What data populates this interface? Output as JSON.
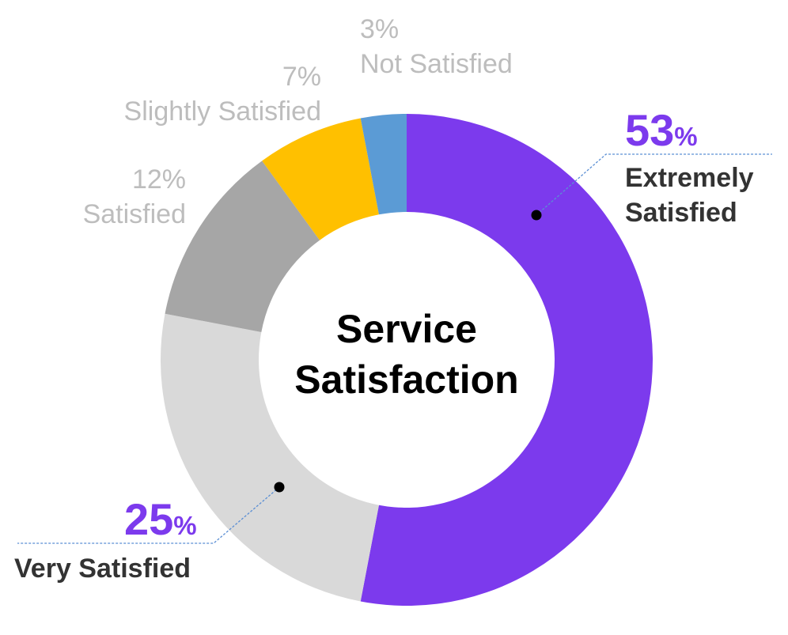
{
  "chart_data": {
    "type": "pie",
    "subtype": "donut",
    "title": "Service Satisfaction",
    "slices": [
      {
        "label": "Extremely Satisfied",
        "value": 53,
        "display": "53",
        "color": "#7c3aed",
        "emphasis": true
      },
      {
        "label": "Very Satisfied",
        "value": 25,
        "display": "25",
        "color": "#d9d9d9",
        "emphasis": true
      },
      {
        "label": "Satisfied",
        "value": 12,
        "display": "12%",
        "color": "#a6a6a6",
        "emphasis": false
      },
      {
        "label": "Slightly Satisfied",
        "value": 7,
        "display": "7%",
        "color": "#ffc000",
        "emphasis": false
      },
      {
        "label": "Not Satisfied",
        "value": 3,
        "display": "3%",
        "color": "#5b9bd5",
        "emphasis": false
      }
    ],
    "percent_symbol": "%",
    "accent_color": "#7c3aed",
    "muted_text_color": "#bdbdbd",
    "strong_text_color": "#333333",
    "center_text_color": "#000000",
    "leader_line_color": "#5b8fd4"
  }
}
